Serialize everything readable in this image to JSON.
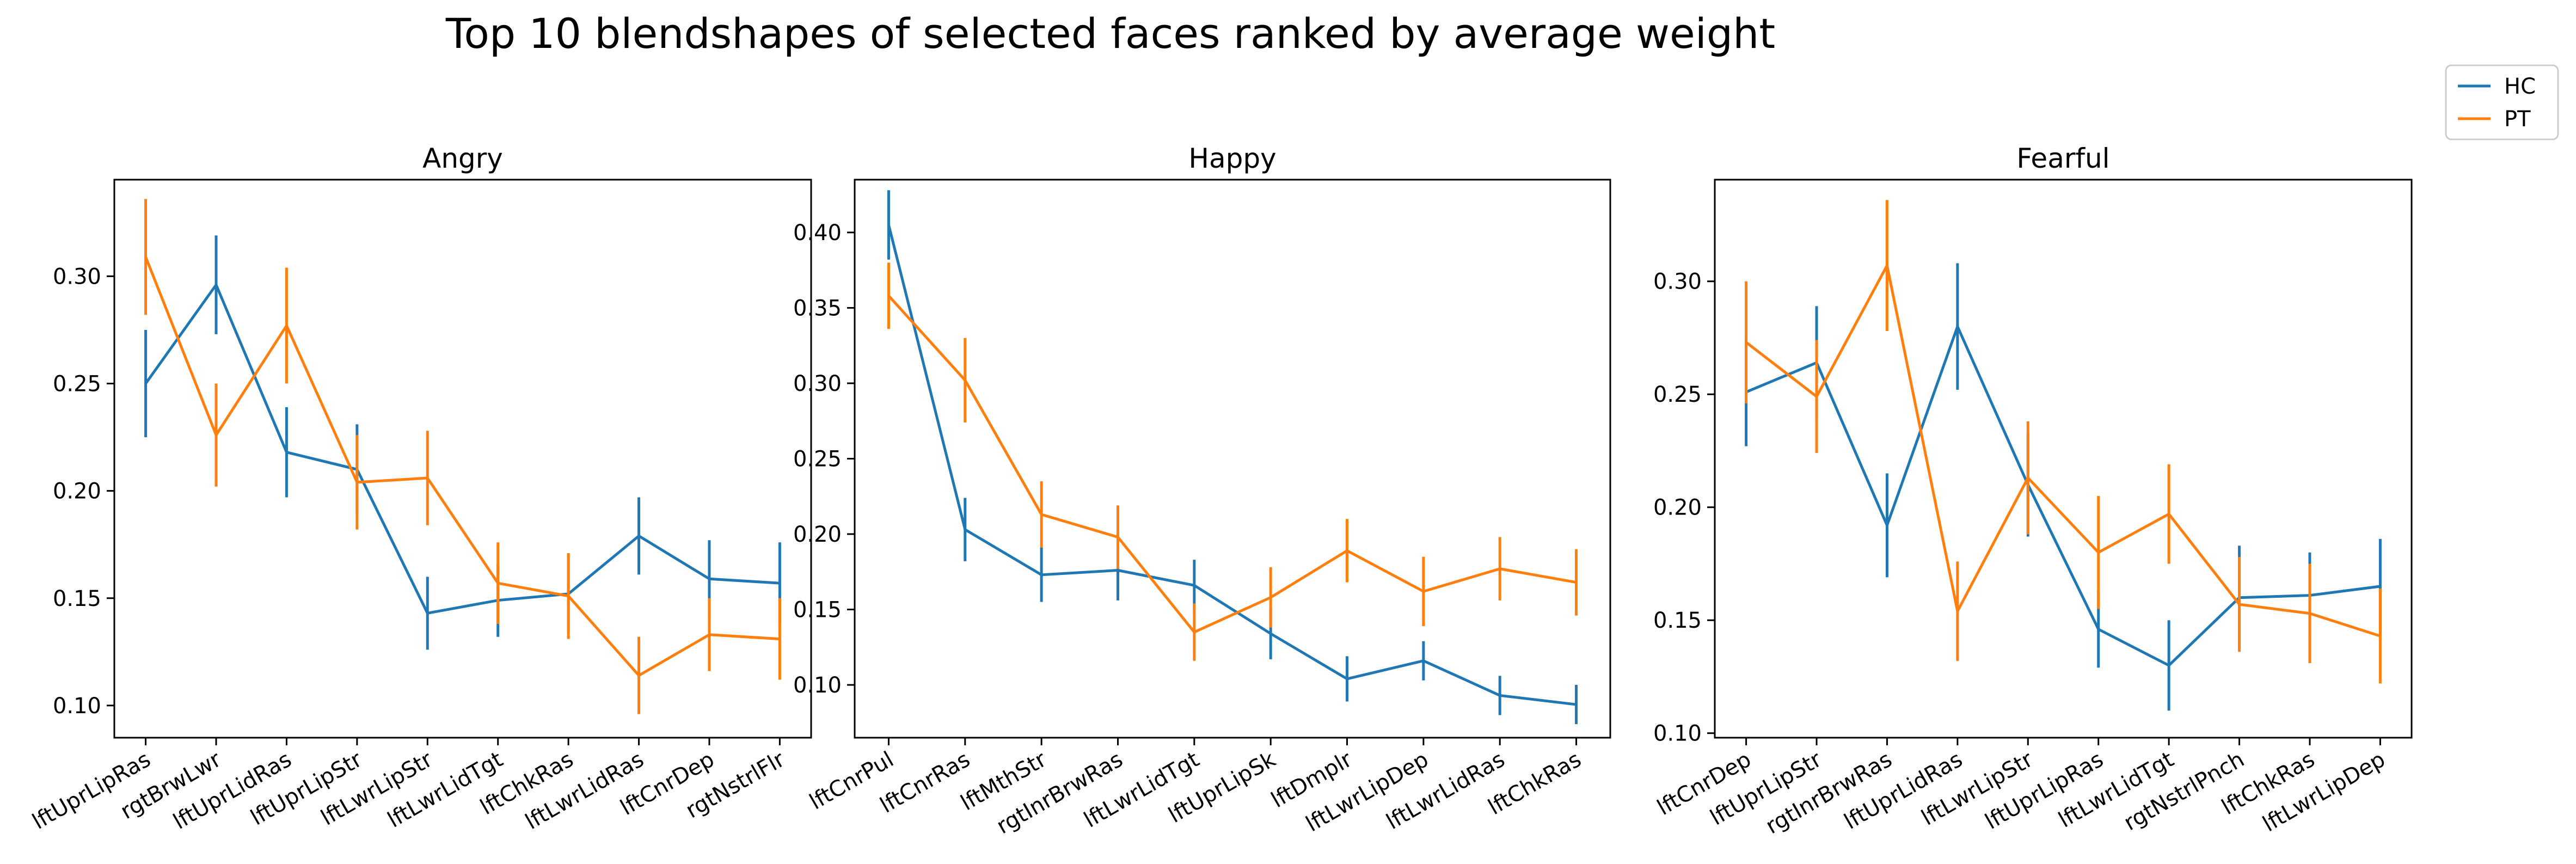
{
  "title": "Top 10 blendshapes of selected faces ranked by average weight",
  "legend": {
    "placement": "top-right outside",
    "entries": [
      {
        "name": "HC",
        "color": "#1f77b4"
      },
      {
        "name": "PT",
        "color": "#ff7f0e"
      }
    ]
  },
  "chart_data": [
    {
      "type": "line",
      "title": "Angry",
      "ylim": [
        0.085,
        0.345
      ],
      "yticks": [
        "0.10",
        "0.15",
        "0.20",
        "0.25",
        "0.30"
      ],
      "categories": [
        "lftUprLipRas",
        "rgtBrwLwr",
        "lftUprLidRas",
        "lftUprLipStr",
        "lftLwrLipStr",
        "lftLwrLidTgt",
        "lftChkRas",
        "lftLwrLidRas",
        "lftCnrDep",
        "rgtNstrlFlr"
      ],
      "series": [
        {
          "name": "HC",
          "color": "#1f77b4",
          "values": [
            0.25,
            0.296,
            0.218,
            0.21,
            0.143,
            0.149,
            0.152,
            0.179,
            0.159,
            0.157
          ],
          "err": [
            0.025,
            0.023,
            0.021,
            0.021,
            0.017,
            0.017,
            0.018,
            0.018,
            0.018,
            0.019
          ]
        },
        {
          "name": "PT",
          "color": "#ff7f0e",
          "values": [
            0.309,
            0.226,
            0.277,
            0.204,
            0.206,
            0.157,
            0.151,
            0.114,
            0.133,
            0.131
          ],
          "err": [
            0.027,
            0.024,
            0.027,
            0.022,
            0.022,
            0.019,
            0.02,
            0.018,
            0.017,
            0.019
          ]
        }
      ]
    },
    {
      "type": "line",
      "title": "Happy",
      "ylim": [
        0.065,
        0.435
      ],
      "yticks": [
        "0.10",
        "0.15",
        "0.20",
        "0.25",
        "0.30",
        "0.35",
        "0.40"
      ],
      "categories": [
        "lftCnrPul",
        "lftCnrRas",
        "lftMthStr",
        "rgtInrBrwRas",
        "lftLwrLidTgt",
        "lftUprLipSk",
        "lftDmplr",
        "lftLwrLipDep",
        "lftLwrLidRas",
        "lftChkRas"
      ],
      "series": [
        {
          "name": "HC",
          "color": "#1f77b4",
          "values": [
            0.405,
            0.203,
            0.173,
            0.176,
            0.166,
            0.134,
            0.104,
            0.116,
            0.093,
            0.087
          ],
          "err": [
            0.023,
            0.021,
            0.018,
            0.02,
            0.017,
            0.017,
            0.015,
            0.013,
            0.013,
            0.013
          ]
        },
        {
          "name": "PT",
          "color": "#ff7f0e",
          "values": [
            0.358,
            0.302,
            0.213,
            0.198,
            0.135,
            0.158,
            0.189,
            0.162,
            0.177,
            0.168
          ],
          "err": [
            0.022,
            0.028,
            0.022,
            0.021,
            0.019,
            0.02,
            0.021,
            0.023,
            0.021,
            0.022
          ]
        }
      ]
    },
    {
      "type": "line",
      "title": "Fearful",
      "ylim": [
        0.098,
        0.345
      ],
      "yticks": [
        "0.10",
        "0.15",
        "0.20",
        "0.25",
        "0.30"
      ],
      "categories": [
        "lftCnrDep",
        "lftUprLipStr",
        "rgtInrBrwRas",
        "lftUprLidRas",
        "lftLwrLipStr",
        "lftUprLipRas",
        "lftLwrLidTgt",
        "rgtNstrlPnch",
        "lftChkRas",
        "lftLwrLipDep"
      ],
      "series": [
        {
          "name": "HC",
          "color": "#1f77b4",
          "values": [
            0.251,
            0.264,
            0.192,
            0.28,
            0.21,
            0.146,
            0.13,
            0.16,
            0.161,
            0.165
          ],
          "err": [
            0.024,
            0.025,
            0.023,
            0.028,
            0.023,
            0.017,
            0.02,
            0.023,
            0.019,
            0.021
          ]
        },
        {
          "name": "PT",
          "color": "#ff7f0e",
          "values": [
            0.273,
            0.249,
            0.307,
            0.154,
            0.213,
            0.18,
            0.197,
            0.157,
            0.153,
            0.143
          ],
          "err": [
            0.027,
            0.025,
            0.029,
            0.022,
            0.025,
            0.025,
            0.022,
            0.021,
            0.022,
            0.021
          ]
        }
      ]
    }
  ]
}
